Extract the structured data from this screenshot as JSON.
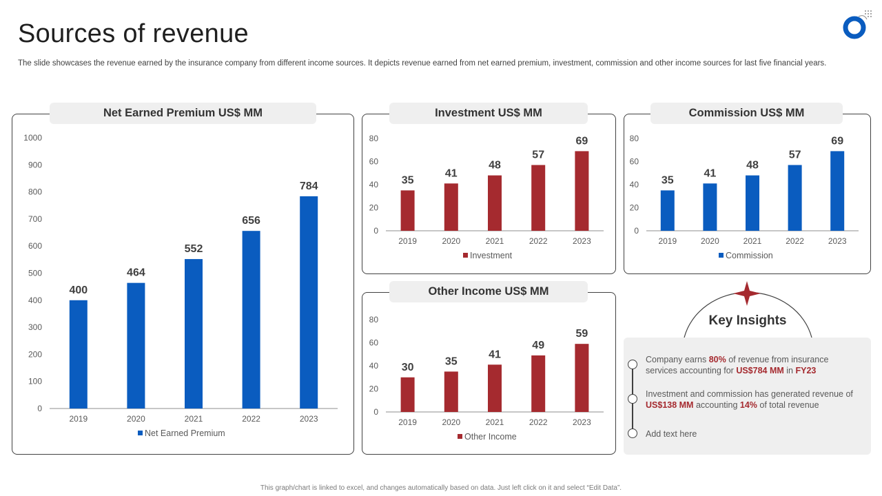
{
  "header": {
    "title": "Sources of revenue",
    "subtitle": "The slide showcases the revenue earned by the insurance company from different income sources. It depicts revenue earned from net earned premium, investment, commission and other income sources for last five financial years."
  },
  "footer": {
    "note": "This graph/chart is linked to excel, and changes automatically based on data. Just left click on it and select “Edit Data”."
  },
  "colors": {
    "blue": "#0a5cbf",
    "red": "#a52a2f"
  },
  "chart_data": [
    {
      "type": "bar",
      "title": "Net Earned Premium US$ MM",
      "categories": [
        "2019",
        "2020",
        "2021",
        "2022",
        "2023"
      ],
      "series": [
        {
          "name": "Net Earned Premium",
          "values": [
            400,
            464,
            552,
            656,
            784
          ]
        }
      ],
      "ylim": [
        0,
        1000
      ],
      "yticks": [
        0,
        100,
        200,
        300,
        400,
        500,
        600,
        700,
        800,
        900,
        1000
      ],
      "legend": "bottom",
      "color": "#0a5cbf"
    },
    {
      "type": "bar",
      "title": "Investment US$ MM",
      "categories": [
        "2019",
        "2020",
        "2021",
        "2022",
        "2023"
      ],
      "series": [
        {
          "name": "Investment",
          "values": [
            35,
            41,
            48,
            57,
            69
          ]
        }
      ],
      "ylim": [
        0,
        80
      ],
      "yticks": [
        0,
        20,
        40,
        60,
        80
      ],
      "legend": "bottom",
      "color": "#a52a2f"
    },
    {
      "type": "bar",
      "title": "Commission US$ MM",
      "categories": [
        "2019",
        "2020",
        "2021",
        "2022",
        "2023"
      ],
      "series": [
        {
          "name": "Commission",
          "values": [
            35,
            41,
            48,
            57,
            69
          ]
        }
      ],
      "ylim": [
        0,
        80
      ],
      "yticks": [
        0,
        20,
        40,
        60,
        80
      ],
      "legend": "bottom",
      "color": "#0a5cbf"
    },
    {
      "type": "bar",
      "title": "Other Income US$ MM",
      "categories": [
        "2019",
        "2020",
        "2021",
        "2022",
        "2023"
      ],
      "series": [
        {
          "name": "Other Income",
          "values": [
            30,
            35,
            41,
            49,
            59
          ]
        }
      ],
      "ylim": [
        0,
        80
      ],
      "yticks": [
        0,
        20,
        40,
        60,
        80
      ],
      "legend": "bottom",
      "color": "#a52a2f"
    }
  ],
  "insights": {
    "title": "Key Insights",
    "items": [
      {
        "parts": [
          {
            "text": "Company earns ",
            "hl": false
          },
          {
            "text": "80%",
            "hl": true
          },
          {
            "text": " of revenue  from insurance services accounting for ",
            "hl": false
          },
          {
            "text": "US$784 MM",
            "hl": true
          },
          {
            "text": " in ",
            "hl": false
          },
          {
            "text": "FY23",
            "hl": true
          }
        ]
      },
      {
        "parts": [
          {
            "text": "Investment  and commission has generated revenue of ",
            "hl": false
          },
          {
            "text": "US$138 MM",
            "hl": true
          },
          {
            "text": " accounting ",
            "hl": false
          },
          {
            "text": "14%",
            "hl": true
          },
          {
            "text": " of total revenue",
            "hl": false
          }
        ]
      },
      {
        "parts": [
          {
            "text": "Add text here",
            "hl": false
          }
        ]
      }
    ]
  }
}
